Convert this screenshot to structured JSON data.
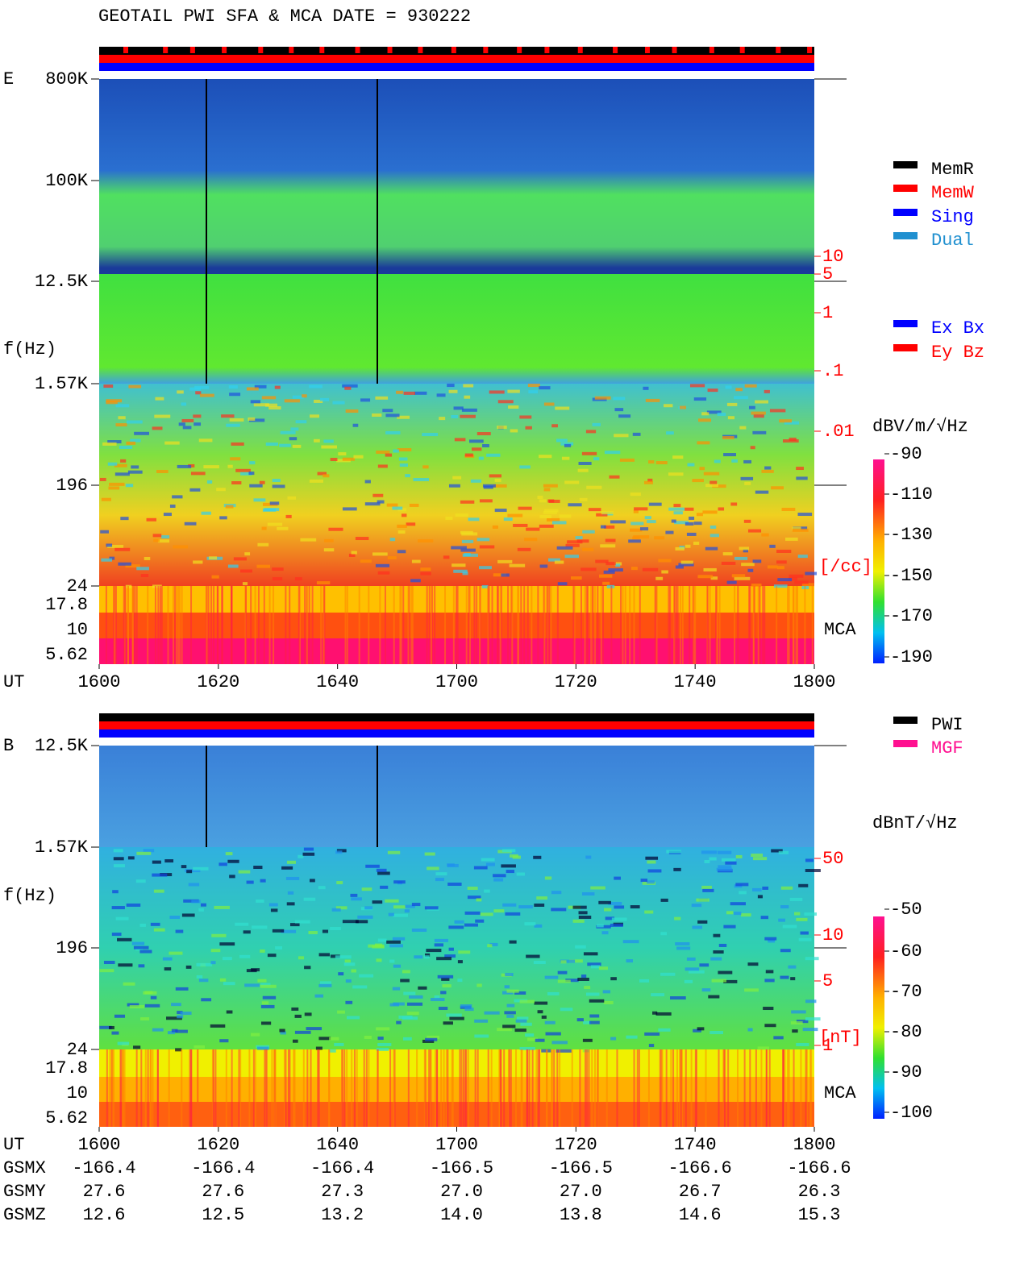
{
  "title": "GEOTAIL  PWI SFA & MCA   DATE = 930222",
  "panels": [
    {
      "label": "E",
      "ylabel": "f(Hz)",
      "xlabel": "UT",
      "yticks": [
        "800K",
        "100K",
        "12.5K",
        "1.57K",
        "196",
        "24",
        "17.8",
        "10",
        "5.62"
      ],
      "xticks": [
        "1600",
        "1620",
        "1640",
        "1700",
        "1720",
        "1740",
        "1800"
      ],
      "right_ticks": [
        "10",
        "5",
        "1",
        ".1",
        ".01"
      ],
      "right_unit": "[/cc]",
      "mca": "MCA",
      "colorbar_title": "dBV/m/√Hz",
      "colorbar_ticks": [
        "-90",
        "-110",
        "-130",
        "-150",
        "-170",
        "-190"
      ],
      "legend": [
        {
          "name": "MemR",
          "color": "#000000"
        },
        {
          "name": "MemW",
          "color": "#ff0000"
        },
        {
          "name": "Sing",
          "color": "#0000ff"
        },
        {
          "name": "Dual",
          "color": "#2090d0"
        },
        {
          "name": "Ex Bx",
          "color": "#0000ff"
        },
        {
          "name": "Ey Bz",
          "color": "#ff0000"
        }
      ]
    },
    {
      "label": "B",
      "ylabel": "f(Hz)",
      "xlabel": "UT",
      "yticks": [
        "12.5K",
        "1.57K",
        "196",
        "24",
        "17.8",
        "10",
        "5.62"
      ],
      "xticks": [
        "1600",
        "1620",
        "1640",
        "1700",
        "1720",
        "1740",
        "1800"
      ],
      "right_ticks": [
        "50",
        "10",
        "5",
        "1"
      ],
      "right_unit": "[nT]",
      "mca": "MCA",
      "colorbar_title": "dBnT/√Hz",
      "colorbar_ticks": [
        "-50",
        "-60",
        "-70",
        "-80",
        "-90",
        "-100"
      ],
      "legend": [
        {
          "name": "PWI",
          "color": "#000000"
        },
        {
          "name": "MGF",
          "color": "#ff1090"
        }
      ]
    }
  ],
  "orbit": [
    {
      "name": "GSMX",
      "values": [
        "-166.4",
        "-166.4",
        "-166.4",
        "-166.5",
        "-166.5",
        "-166.6",
        "-166.6"
      ]
    },
    {
      "name": "GSMY",
      "values": [
        "27.6",
        "27.6",
        "27.3",
        "27.0",
        "27.0",
        "26.7",
        "26.3"
      ]
    },
    {
      "name": "GSMZ",
      "values": [
        "12.6",
        "12.5",
        "13.2",
        "14.0",
        "13.8",
        "14.6",
        "15.3"
      ]
    }
  ]
}
